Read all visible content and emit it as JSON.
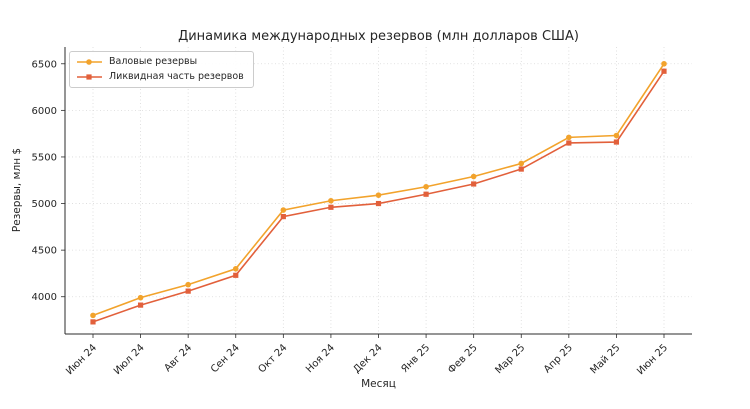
{
  "chart_data": {
    "type": "line",
    "title": "Динамика международных резервов (млн долларов США)",
    "xlabel": "Месяц",
    "ylabel": "Резервы, млн $",
    "categories": [
      "Июн 24",
      "Июл 24",
      "Авг 24",
      "Сен 24",
      "Окт 24",
      "Ноя 24",
      "Дек 24",
      "Янв 25",
      "Фев 25",
      "Мар 25",
      "Апр 25",
      "Май 25",
      "Июн 25"
    ],
    "series": [
      {
        "id": "gross-reserves",
        "name": "Валовые резервы",
        "marker": "circle",
        "color": "#F2A32C",
        "values": [
          3800,
          3990,
          4130,
          4300,
          4930,
          5030,
          5090,
          5180,
          5290,
          5430,
          5710,
          5730,
          6500
        ]
      },
      {
        "id": "liquid-reserves",
        "name": "Ликвидная часть резервов",
        "marker": "square",
        "color": "#E2603B",
        "values": [
          3730,
          3910,
          4060,
          4230,
          4860,
          4960,
          5000,
          5100,
          5210,
          5370,
          5650,
          5660,
          6420
        ]
      }
    ],
    "yticks": [
      4000,
      4500,
      5000,
      5500,
      6000,
      6500
    ],
    "ylim": [
      3600,
      6680
    ],
    "grid": true,
    "legend_position": "upper-left"
  }
}
